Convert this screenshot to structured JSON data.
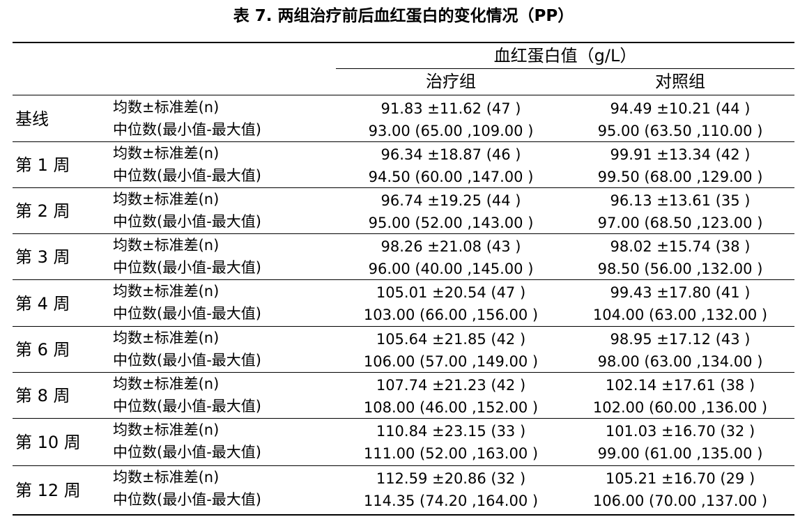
{
  "title": "表 7. 两组治疗前后血红蛋白的变化情况（PP）",
  "header": {
    "group_header": "血红蛋白值（g/L）",
    "col1": "治疗组",
    "col2": "对照组"
  },
  "stat_labels": {
    "mean": "均数±标准差(n)",
    "median": "中位数(最小值-最大值)"
  },
  "rows": [
    {
      "label": "基线",
      "treat_mean": "91.83 ±11.62 (47 )",
      "treat_median": "93.00 (65.00 ,109.00 )",
      "ctrl_mean": "94.49 ±10.21 (44 )",
      "ctrl_median": "95.00 (63.50 ,110.00 )"
    },
    {
      "label": "第 1 周",
      "treat_mean": "96.34 ±18.87 (46 )",
      "treat_median": "94.50 (60.00 ,147.00 )",
      "ctrl_mean": "99.91 ±13.34 (42 )",
      "ctrl_median": "99.50 (68.00 ,129.00 )"
    },
    {
      "label": "第 2 周",
      "treat_mean": "96.74 ±19.25 (44 )",
      "treat_median": "95.00 (52.00 ,143.00 )",
      "ctrl_mean": "96.13 ±13.61 (35 )",
      "ctrl_median": "97.00 (68.50 ,123.00 )"
    },
    {
      "label": "第 3 周",
      "treat_mean": "98.26 ±21.08 (43 )",
      "treat_median": "96.00 (40.00 ,145.00 )",
      "ctrl_mean": "98.02 ±15.74 (38 )",
      "ctrl_median": "98.50 (56.00 ,132.00 )"
    },
    {
      "label": "第 4 周",
      "treat_mean": "105.01 ±20.54 (47 )",
      "treat_median": "103.00 (66.00 ,156.00 )",
      "ctrl_mean": "99.43 ±17.80 (41 )",
      "ctrl_median": "104.00 (63.00 ,132.00 )"
    },
    {
      "label": "第 6 周",
      "treat_mean": "105.64 ±21.85 (42 )",
      "treat_median": "106.00 (57.00 ,149.00 )",
      "ctrl_mean": "98.95 ±17.12 (43 )",
      "ctrl_median": "98.00 (63.00 ,134.00 )"
    },
    {
      "label": "第 8 周",
      "treat_mean": "107.74 ±21.23 (42 )",
      "treat_median": "108.00 (46.00 ,152.00 )",
      "ctrl_mean": "102.14 ±17.61 (38 )",
      "ctrl_median": "102.00 (60.00 ,136.00 )"
    },
    {
      "label": "第 10 周",
      "treat_mean": "110.84 ±23.15 (33 )",
      "treat_median": "111.00 (52.00 ,163.00 )",
      "ctrl_mean": "101.03 ±16.70 (32 )",
      "ctrl_median": "99.00 (61.00 ,135.00 )"
    },
    {
      "label": "第 12 周",
      "treat_mean": "112.59 ±20.86 (32 )",
      "treat_median": "114.35 (74.20 ,164.00 )",
      "ctrl_mean": "105.21 ±16.70 (29 )",
      "ctrl_median": "106.00 (70.00 ,137.00 )"
    }
  ]
}
